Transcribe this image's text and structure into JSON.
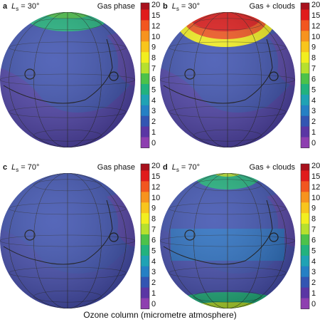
{
  "panels": [
    {
      "letter": "a",
      "ls": {
        "symbol": "L",
        "subscript": "s",
        "value": "= 30°"
      },
      "condition": "Gas phase"
    },
    {
      "letter": "b",
      "ls": {
        "symbol": "L",
        "subscript": "s",
        "value": "= 30°"
      },
      "condition": "Gas + clouds"
    },
    {
      "letter": "c",
      "ls": {
        "symbol": "L",
        "subscript": "s",
        "value": "= 70°"
      },
      "condition": "Gas phase"
    },
    {
      "letter": "d",
      "ls": {
        "symbol": "L",
        "subscript": "s",
        "value": "= 70°"
      },
      "condition": "Gas + clouds"
    }
  ],
  "colorbar": {
    "ticks": [
      "20",
      "15",
      "12",
      "10",
      "9",
      "8",
      "7",
      "6",
      "5",
      "4",
      "3",
      "2",
      "1",
      "0"
    ],
    "colors": [
      "#a8101c",
      "#e01b1b",
      "#f2561f",
      "#f7931e",
      "#f8c51c",
      "#f2ee1f",
      "#b6e02e",
      "#4cc24a",
      "#22b27e",
      "#1fa2b4",
      "#2580c4",
      "#3355b2",
      "#5a36a4",
      "#8e3fb0"
    ]
  },
  "caption": "Ozone column (micrometre atmosphere)"
}
